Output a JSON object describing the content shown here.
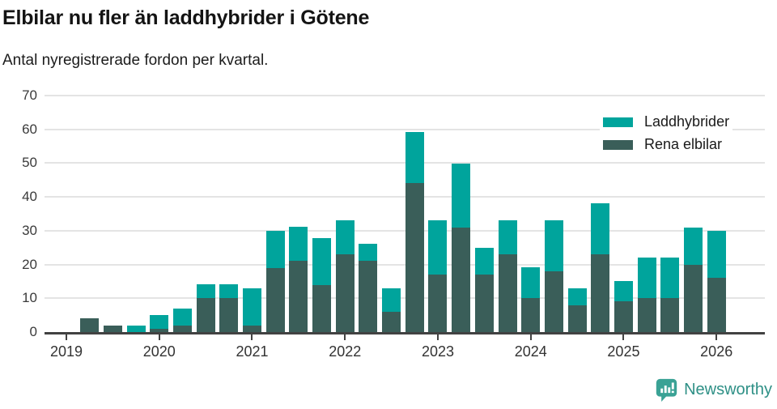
{
  "header": {
    "title": "Elbilar nu fler än laddhybrider i Götene",
    "subtitle": "Antal nyregistrerade fordon per kvartal."
  },
  "colors": {
    "laddhybrider": "#00a49c",
    "rena_elbilar": "#3a5e59",
    "gridline": "#e4e4e4",
    "axis": "#424242",
    "brand_teal": "#2e9086",
    "brand_icon": "#3aa295"
  },
  "legend": {
    "items": [
      {
        "label": "Laddhybrider",
        "color": "#00a49c"
      },
      {
        "label": "Rena elbilar",
        "color": "#3a5e59"
      }
    ]
  },
  "chart_data": {
    "type": "bar",
    "stacked": true,
    "title": "Elbilar nu fler än laddhybrider i Götene",
    "subtitle": "Antal nyregistrerade fordon per kvartal.",
    "ylim": [
      0,
      70
    ],
    "yticks": [
      0,
      10,
      20,
      30,
      40,
      50,
      60,
      70
    ],
    "grid": "horizontal",
    "legend_position": "top-right",
    "categories": [
      "2019 Q1",
      "2019 Q2",
      "2019 Q3",
      "2019 Q4",
      "2020 Q1",
      "2020 Q2",
      "2020 Q3",
      "2020 Q4",
      "2021 Q1",
      "2021 Q2",
      "2021 Q3",
      "2021 Q4",
      "2022 Q1",
      "2022 Q2",
      "2022 Q3",
      "2022 Q4",
      "2023 Q1",
      "2023 Q2",
      "2023 Q3",
      "2023 Q4",
      "2024 Q1",
      "2024 Q2",
      "2024 Q3",
      "2024 Q4",
      "2025 Q1",
      "2025 Q2",
      "2025 Q3",
      "2025 Q4",
      "2026 Q1"
    ],
    "x_tick_labels": [
      "2019",
      "2020",
      "2021",
      "2022",
      "2023",
      "2024",
      "2025",
      "2026"
    ],
    "stack_order": [
      "Rena elbilar",
      "Laddhybrider"
    ],
    "series": [
      {
        "name": "Laddhybrider",
        "color": "#00a49c",
        "values": [
          0,
          0,
          0,
          2,
          4,
          5,
          4,
          4,
          11,
          11,
          10,
          14,
          10,
          5,
          7,
          15,
          16,
          19,
          8,
          10,
          9,
          15,
          5,
          15,
          6,
          12,
          12,
          11,
          14
        ]
      },
      {
        "name": "Rena elbilar",
        "color": "#3a5e59",
        "values": [
          0,
          4,
          2,
          0,
          1,
          2,
          10,
          10,
          2,
          19,
          21,
          14,
          23,
          21,
          6,
          44,
          17,
          31,
          17,
          23,
          10,
          18,
          8,
          23,
          9,
          10,
          10,
          20,
          16
        ]
      }
    ]
  },
  "footer": {
    "brand": "Newsworthy"
  }
}
